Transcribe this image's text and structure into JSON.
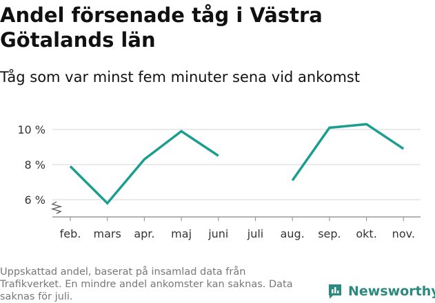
{
  "title": "Andel försenade tåg i Västra Götalands län",
  "subtitle": "Tåg som var minst fem minuter sena vid ankomst",
  "footnote": "Uppskattad andel, baserat på insamlad data från Trafikverket. En mindre andel ankomster kan saknas. Data saknas för juli.",
  "brand": {
    "name": "Newsworthy",
    "color": "#2b8a7e"
  },
  "chart_data": {
    "type": "line",
    "categories": [
      "feb.",
      "mars",
      "apr.",
      "maj",
      "juni",
      "juli",
      "aug.",
      "sep.",
      "okt.",
      "nov."
    ],
    "series": [
      {
        "values": [
          7.9,
          5.8,
          8.3,
          9.9,
          8.5,
          null,
          7.1,
          10.1,
          10.3,
          8.9
        ]
      }
    ],
    "yticks": [
      6,
      8,
      10
    ],
    "ytick_labels": [
      "6 %",
      "8 %",
      "10 %"
    ],
    "ylim": [
      5,
      11
    ],
    "y_axis_break": true,
    "grid": true,
    "line_color": "#1a9e8f"
  }
}
